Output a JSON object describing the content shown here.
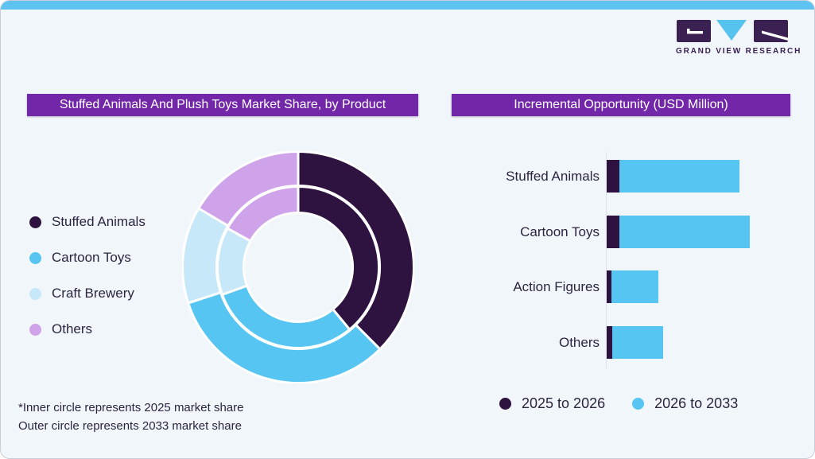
{
  "brand": {
    "logo_caption": "GRAND VIEW RESEARCH"
  },
  "colors": {
    "card_bg": "#f1f6fa",
    "card_border": "#c9ced6",
    "top_strip_blue": "#5ec3f1",
    "header_purple": "#7127a8",
    "header_text": "#ffffff",
    "text_dark": "#2b2540",
    "axis_line": "#dce3ea",
    "dark_purple": "#2e1340",
    "sky_blue": "#56c5f1",
    "pale_blue": "#c6e8f8",
    "lavender": "#cfa3e9",
    "logo_purple": "#3b2052",
    "logo_blue": "#56c2ee"
  },
  "left_panel": {
    "title": "Stuffed Animals And Plush Toys Market Share, by Product",
    "legend": [
      {
        "label": "Stuffed Animals",
        "color": "#2e1340"
      },
      {
        "label": "Cartoon Toys",
        "color": "#56c5f1"
      },
      {
        "label": "Craft Brewery",
        "color": "#c6e8f8"
      },
      {
        "label": "Others",
        "color": "#cfa3e9"
      }
    ],
    "footnote_line1": "*Inner circle represents 2025 market share",
    "footnote_line2": "Outer circle represents 2033 market share"
  },
  "right_panel": {
    "title": "Incremental Opportunity (USD Million)",
    "legend": [
      {
        "label": "2025 to 2026",
        "color": "#2e1340"
      },
      {
        "label": "2026 to 2033",
        "color": "#56c5f1"
      }
    ]
  },
  "chart_data": [
    {
      "type": "pie",
      "subtype": "double-ring-donut",
      "title": "Stuffed Animals And Plush Toys Market Share, by Product",
      "labels": [
        "Stuffed Animals",
        "Cartoon Toys",
        "Craft Brewery",
        "Others"
      ],
      "colors": [
        "#2e1340",
        "#56c5f1",
        "#c6e8f8",
        "#cfa3e9"
      ],
      "rings": [
        {
          "name": "2025 market share (inner circle)",
          "values_pct": [
            39.0,
            30.5,
            13.5,
            17.0
          ]
        },
        {
          "name": "2033 market share (outer circle)",
          "values_pct": [
            37.5,
            32.5,
            13.5,
            16.5
          ]
        }
      ],
      "start_angle_deg": 0,
      "direction": "clockwise",
      "values_are_estimates": true,
      "footnote": "*Inner circle represents 2025 market share. Outer circle represents 2033 market share"
    },
    {
      "type": "bar",
      "orientation": "horizontal",
      "stacked": true,
      "title": "Incremental Opportunity (USD Million)",
      "categories": [
        "Stuffed Animals",
        "Cartoon Toys",
        "Action Figures",
        "Others"
      ],
      "series": [
        {
          "name": "2025 to 2026",
          "color": "#2e1340",
          "values": [
            16,
            16,
            6,
            7
          ]
        },
        {
          "name": "2026 to 2033",
          "color": "#56c5f1",
          "values": [
            151,
            164,
            59,
            64
          ]
        }
      ],
      "axis_value_labels_shown": false,
      "values_are_relative_estimates": true,
      "legend_position": "bottom"
    }
  ]
}
